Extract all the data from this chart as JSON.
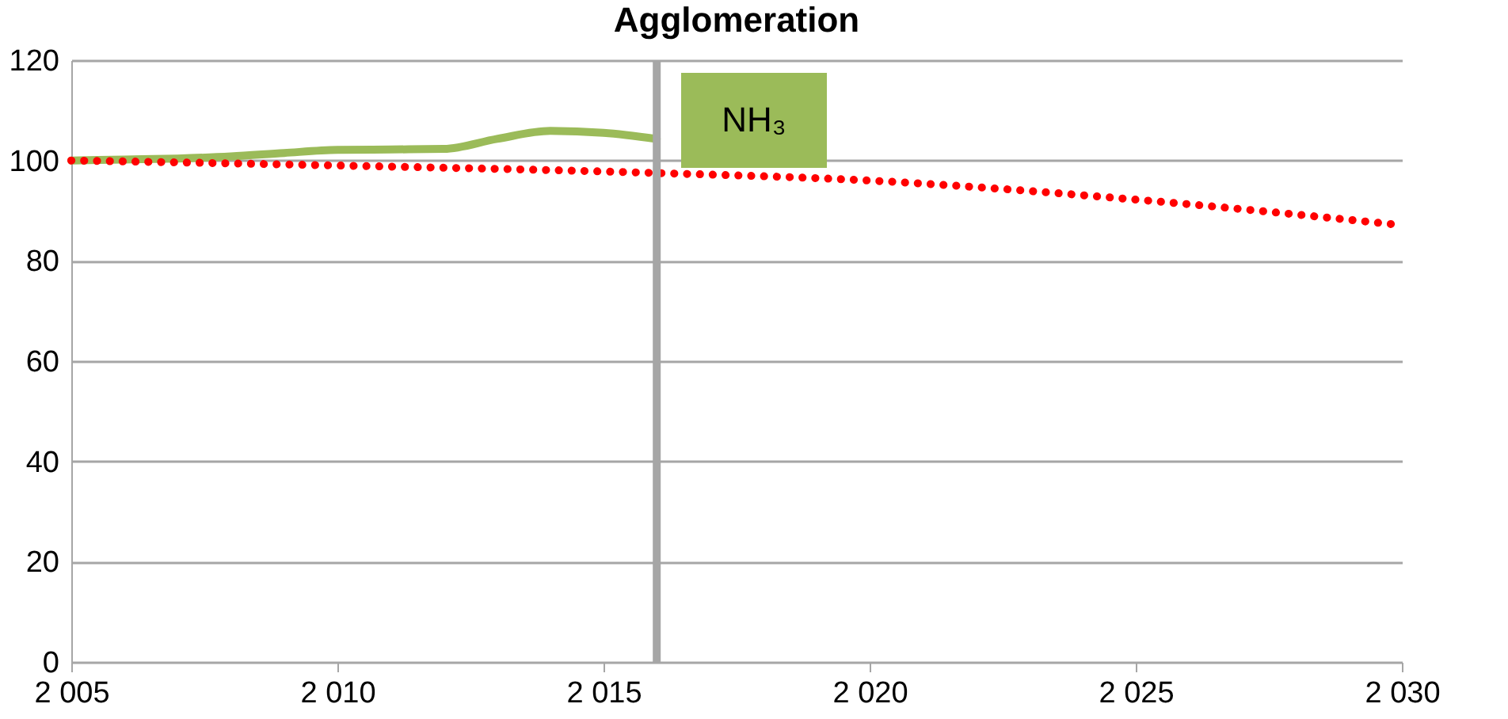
{
  "chart_data": {
    "type": "line",
    "title": "Agglomeration",
    "xlim": [
      2005,
      2030
    ],
    "xticks": [
      {
        "value": 2005,
        "label": "2 005"
      },
      {
        "value": 2010,
        "label": "2 010"
      },
      {
        "value": 2015,
        "label": "2 015"
      },
      {
        "value": 2020,
        "label": "2 020"
      },
      {
        "value": 2025,
        "label": "2 025"
      },
      {
        "value": 2030,
        "label": "2 030"
      }
    ],
    "ylim": [
      0,
      120
    ],
    "yticks": [
      0,
      20,
      40,
      60,
      80,
      100,
      120
    ],
    "grid": "y",
    "marker": "none",
    "series": [
      {
        "color": "#9bbb59",
        "line_style": "solid",
        "x": [
          2005,
          2006,
          2007,
          2008,
          2009,
          2010,
          2011,
          2012,
          2013,
          2014,
          2015,
          2016
        ],
        "values": [
          100,
          100.2,
          100.4,
          100.8,
          101.5,
          102.1,
          102.2,
          102.3,
          104.3,
          105.9,
          105.5,
          104.3
        ]
      },
      {
        "color": "#ff0000",
        "line_style": "dotted",
        "x": [
          2005,
          2010,
          2016,
          2020,
          2025,
          2030
        ],
        "values": [
          100,
          99,
          97.5,
          96,
          92.2,
          87.1
        ]
      }
    ],
    "ref_lines": [
      {
        "axis": "x",
        "value": 2016,
        "color": "#a6a6a6"
      }
    ],
    "annotations": [
      "NH₃"
    ]
  }
}
